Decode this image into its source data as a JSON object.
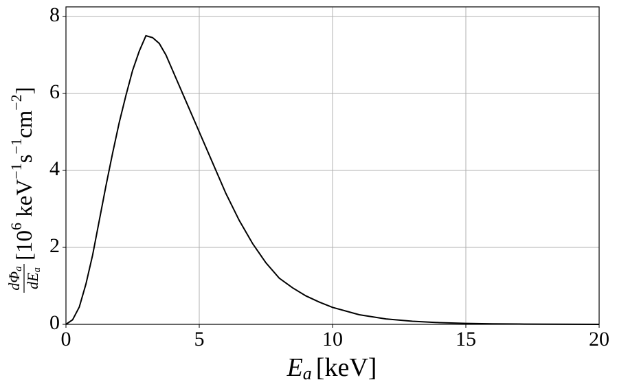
{
  "chart_data": {
    "type": "line",
    "x_label": {
      "main": "E",
      "sub": "a",
      "unit": "[keV]"
    },
    "y_label": {
      "numerator": {
        "main": "dΦ",
        "sub": "a"
      },
      "denominator": {
        "main": "dE",
        "sub": "a"
      },
      "units": [
        {
          "text": "[10"
        },
        {
          "sup": "6"
        },
        {
          "text": " keV"
        },
        {
          "sup": "−1"
        },
        {
          "text": "s"
        },
        {
          "sup": "−1"
        },
        {
          "text": "cm"
        },
        {
          "sup": "−2"
        },
        {
          "text": "]"
        }
      ]
    },
    "x": [
      0,
      0.25,
      0.5,
      0.75,
      1,
      1.25,
      1.5,
      1.75,
      2,
      2.25,
      2.5,
      2.75,
      3,
      3.25,
      3.5,
      3.75,
      4,
      4.5,
      5,
      5.5,
      6,
      6.5,
      7,
      7.5,
      8,
      8.5,
      9,
      9.5,
      10,
      11,
      12,
      13,
      14,
      15,
      16,
      17,
      18,
      19,
      20
    ],
    "series": [
      {
        "color": "#000000",
        "values": [
          0,
          0.12,
          0.45,
          1.05,
          1.8,
          2.7,
          3.6,
          4.45,
          5.25,
          5.95,
          6.6,
          7.1,
          7.5,
          7.45,
          7.3,
          7.0,
          6.6,
          5.8,
          5.0,
          4.2,
          3.4,
          2.7,
          2.1,
          1.6,
          1.2,
          0.95,
          0.74,
          0.58,
          0.44,
          0.25,
          0.14,
          0.08,
          0.045,
          0.025,
          0.014,
          0.008,
          0.004,
          0.002,
          0.001
        ]
      }
    ],
    "xlim": [
      0,
      20
    ],
    "xticks": [
      0,
      5,
      10,
      15,
      20
    ],
    "ylim": [
      0,
      8.25
    ],
    "yticks": [
      0,
      2,
      4,
      6,
      8
    ],
    "grid": true
  }
}
